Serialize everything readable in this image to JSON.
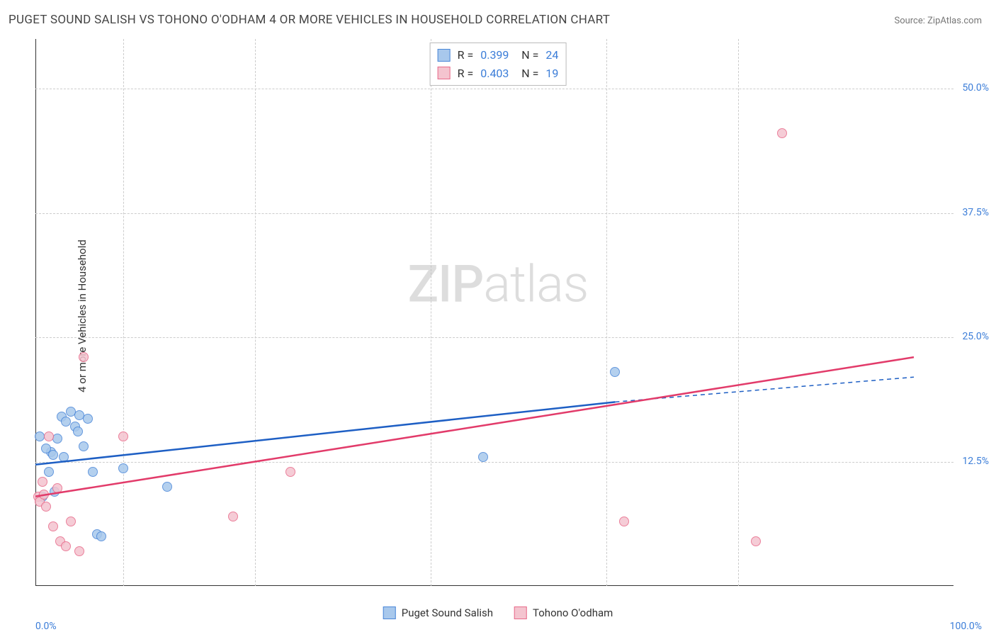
{
  "title": "PUGET SOUND SALISH VS TOHONO O'ODHAM 4 OR MORE VEHICLES IN HOUSEHOLD CORRELATION CHART",
  "source": "Source: ZipAtlas.com",
  "y_axis_label": "4 or more Vehicles in Household",
  "watermark_bold": "ZIP",
  "watermark_thin": "atlas",
  "chart": {
    "type": "scatter",
    "xlim": [
      0,
      100
    ],
    "ylim": [
      0,
      55
    ],
    "x_ticks": [
      0,
      100
    ],
    "x_tick_labels": [
      "0.0%",
      "100.0%"
    ],
    "x_minor_ticks": [
      10,
      25,
      45,
      65,
      80
    ],
    "y_ticks": [
      12.5,
      25.0,
      37.5,
      50.0
    ],
    "y_tick_labels": [
      "12.5%",
      "25.0%",
      "37.5%",
      "50.0%"
    ],
    "background_color": "#ffffff",
    "grid_color": "#cccccc",
    "axis_color": "#333333",
    "tick_label_color": "#3b7dd8",
    "series": [
      {
        "name": "Puget Sound Salish",
        "color_fill": "#a8c8ec",
        "color_stroke": "#4a87d8",
        "marker_size": 14,
        "R": "0.399",
        "N": "24",
        "trend": {
          "x1": 0,
          "y1": 12.2,
          "x2": 66,
          "y2": 18.5,
          "color": "#1e5fc4",
          "width": 2.5,
          "dash_ext_x2": 100,
          "dash_ext_y2": 21.0
        },
        "points": [
          {
            "x": 0.5,
            "y": 15.0
          },
          {
            "x": 0.8,
            "y": 9.0
          },
          {
            "x": 1.5,
            "y": 11.5
          },
          {
            "x": 1.8,
            "y": 13.5
          },
          {
            "x": 2.0,
            "y": 13.2
          },
          {
            "x": 2.5,
            "y": 14.8
          },
          {
            "x": 3.0,
            "y": 17.0
          },
          {
            "x": 3.5,
            "y": 16.5
          },
          {
            "x": 4.0,
            "y": 17.5
          },
          {
            "x": 4.5,
            "y": 16.0
          },
          {
            "x": 5.0,
            "y": 17.2
          },
          {
            "x": 5.5,
            "y": 14.0
          },
          {
            "x": 6.0,
            "y": 16.8
          },
          {
            "x": 6.5,
            "y": 11.5
          },
          {
            "x": 7.0,
            "y": 5.2
          },
          {
            "x": 7.5,
            "y": 5.0
          },
          {
            "x": 10.0,
            "y": 11.8
          },
          {
            "x": 15.0,
            "y": 10.0
          },
          {
            "x": 2.2,
            "y": 9.5
          },
          {
            "x": 3.2,
            "y": 13.0
          },
          {
            "x": 4.8,
            "y": 15.5
          },
          {
            "x": 51.0,
            "y": 13.0
          },
          {
            "x": 66.0,
            "y": 21.5
          },
          {
            "x": 1.2,
            "y": 13.8
          }
        ]
      },
      {
        "name": "Tohono O'odham",
        "color_fill": "#f4c4cf",
        "color_stroke": "#e86a8a",
        "marker_size": 14,
        "R": "0.403",
        "N": "19",
        "trend": {
          "x1": 0,
          "y1": 9.0,
          "x2": 100,
          "y2": 23.0,
          "color": "#e23b6a",
          "width": 2.5
        },
        "points": [
          {
            "x": 0.3,
            "y": 9.0
          },
          {
            "x": 0.5,
            "y": 8.5
          },
          {
            "x": 1.0,
            "y": 9.2
          },
          {
            "x": 1.5,
            "y": 15.0
          },
          {
            "x": 2.0,
            "y": 6.0
          },
          {
            "x": 2.8,
            "y": 4.5
          },
          {
            "x": 3.5,
            "y": 4.0
          },
          {
            "x": 4.0,
            "y": 6.5
          },
          {
            "x": 5.0,
            "y": 3.5
          },
          {
            "x": 5.5,
            "y": 23.0
          },
          {
            "x": 10.0,
            "y": 15.0
          },
          {
            "x": 22.5,
            "y": 7.0
          },
          {
            "x": 29.0,
            "y": 11.5
          },
          {
            "x": 67.0,
            "y": 6.5
          },
          {
            "x": 82.0,
            "y": 4.5
          },
          {
            "x": 85.0,
            "y": 45.5
          },
          {
            "x": 0.8,
            "y": 10.5
          },
          {
            "x": 1.2,
            "y": 8.0
          },
          {
            "x": 2.5,
            "y": 9.8
          }
        ]
      }
    ]
  },
  "legend_top": {
    "rows": [
      {
        "swatch_fill": "#a8c8ec",
        "swatch_stroke": "#4a87d8",
        "r_label": "R =",
        "r_val": "0.399",
        "n_label": "N =",
        "n_val": "24"
      },
      {
        "swatch_fill": "#f4c4cf",
        "swatch_stroke": "#e86a8a",
        "r_label": "R =",
        "r_val": "0.403",
        "n_label": "N =",
        "n_val": "19"
      }
    ]
  },
  "legend_bottom": {
    "items": [
      {
        "swatch_fill": "#a8c8ec",
        "swatch_stroke": "#4a87d8",
        "label": "Puget Sound Salish"
      },
      {
        "swatch_fill": "#f4c4cf",
        "swatch_stroke": "#e86a8a",
        "label": "Tohono O'odham"
      }
    ]
  }
}
